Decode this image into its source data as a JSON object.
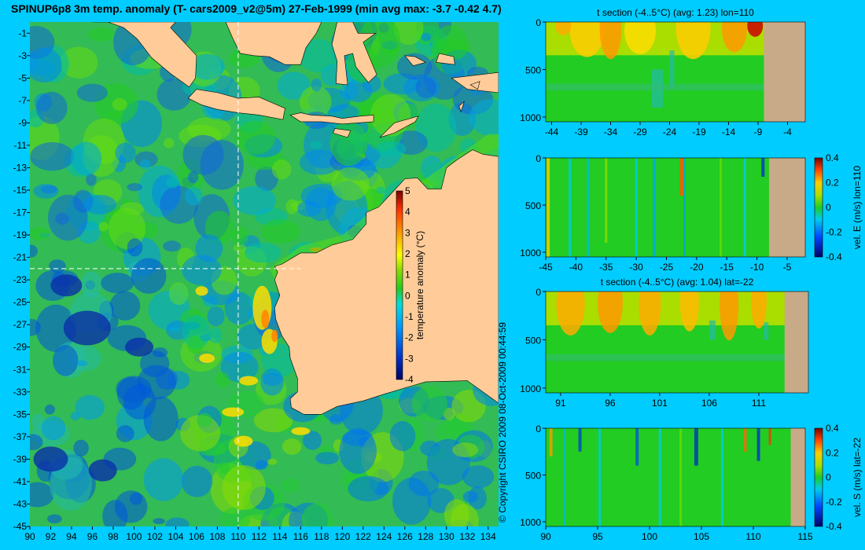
{
  "title": "SPINUP6p8 3m temp. anomaly (T- cars2009_v2@5m) 27-Feb-1999 (min avg max: -3.7 -0.42 4.7)",
  "copyright": "© Copyright CSIRO 2009   08-Oct-2009 00:44:59",
  "colors": {
    "background": "#00ccff",
    "land": "#ffcc99",
    "mask": "#c8aa88",
    "ocean_neutral": "#22cc22"
  },
  "chart_data": [
    {
      "type": "heatmap",
      "name": "map",
      "title": "SPINUP6p8 3m temp. anomaly (T- cars2009_v2@5m) 27-Feb-1999 (min avg max: -3.7 -0.42 4.7)",
      "xlim": [
        90,
        135
      ],
      "ylim": [
        -45,
        0
      ],
      "x_ticks": [
        90,
        92,
        94,
        96,
        98,
        100,
        102,
        104,
        106,
        108,
        110,
        112,
        114,
        116,
        118,
        120,
        122,
        124,
        126,
        128,
        130,
        132,
        134
      ],
      "y_ticks": [
        -1,
        -3,
        -5,
        -7,
        -9,
        -11,
        -13,
        -15,
        -17,
        -19,
        -21,
        -23,
        -25,
        -27,
        -29,
        -31,
        -33,
        -35,
        -37,
        -39,
        -41,
        -43,
        -45
      ],
      "section_lines": {
        "lon": 110,
        "lat": -22
      },
      "colorbar": {
        "label": "temperature anomaly (°C)",
        "min": -4,
        "max": 5,
        "ticks": [
          5,
          4,
          3,
          2,
          1,
          0,
          -1,
          -2,
          -3,
          -4
        ]
      }
    },
    {
      "type": "heatmap",
      "name": "t-section-lon110",
      "title": "t section (-4..5°C) (avg: 1.23) lon=110",
      "xlim": [
        -45,
        -1
      ],
      "ylim": [
        1050,
        0
      ],
      "x_ticks": [
        -44,
        -39,
        -34,
        -29,
        -24,
        -19,
        -14,
        -9,
        -4
      ],
      "y_ticks": [
        0,
        500,
        1000
      ]
    },
    {
      "type": "heatmap",
      "name": "vel-e-section-lon110",
      "title": "",
      "xlim": [
        -45,
        -2
      ],
      "ylim": [
        1050,
        0
      ],
      "x_ticks": [
        -45,
        -40,
        -35,
        -30,
        -25,
        -20,
        -15,
        -10,
        -5
      ],
      "y_ticks": [
        0,
        500,
        1000
      ],
      "colorbar": {
        "label": "vel. E (m/s) lon=110",
        "ticks": [
          "0.4",
          "0.2",
          "0",
          "-0.2",
          "-0.4"
        ]
      }
    },
    {
      "type": "heatmap",
      "name": "t-section-lat-22",
      "title": "t section (-4..5°C) (avg: 1.04) lat=-22",
      "xlim": [
        89.5,
        116
      ],
      "ylim": [
        1050,
        0
      ],
      "x_ticks": [
        91,
        96,
        101,
        106,
        111
      ],
      "y_ticks": [
        0,
        500,
        1000
      ]
    },
    {
      "type": "heatmap",
      "name": "vel-s-section-lat-22",
      "title": "",
      "xlim": [
        90,
        115
      ],
      "ylim": [
        1050,
        0
      ],
      "x_ticks": [
        90,
        95,
        100,
        105,
        110,
        115
      ],
      "y_ticks": [
        0,
        500,
        1000
      ],
      "colorbar": {
        "label": "vel. S (m/s) lat=-22",
        "ticks": [
          "0.4",
          "0.2",
          "0",
          "-0.2",
          "-0.4"
        ]
      }
    }
  ]
}
